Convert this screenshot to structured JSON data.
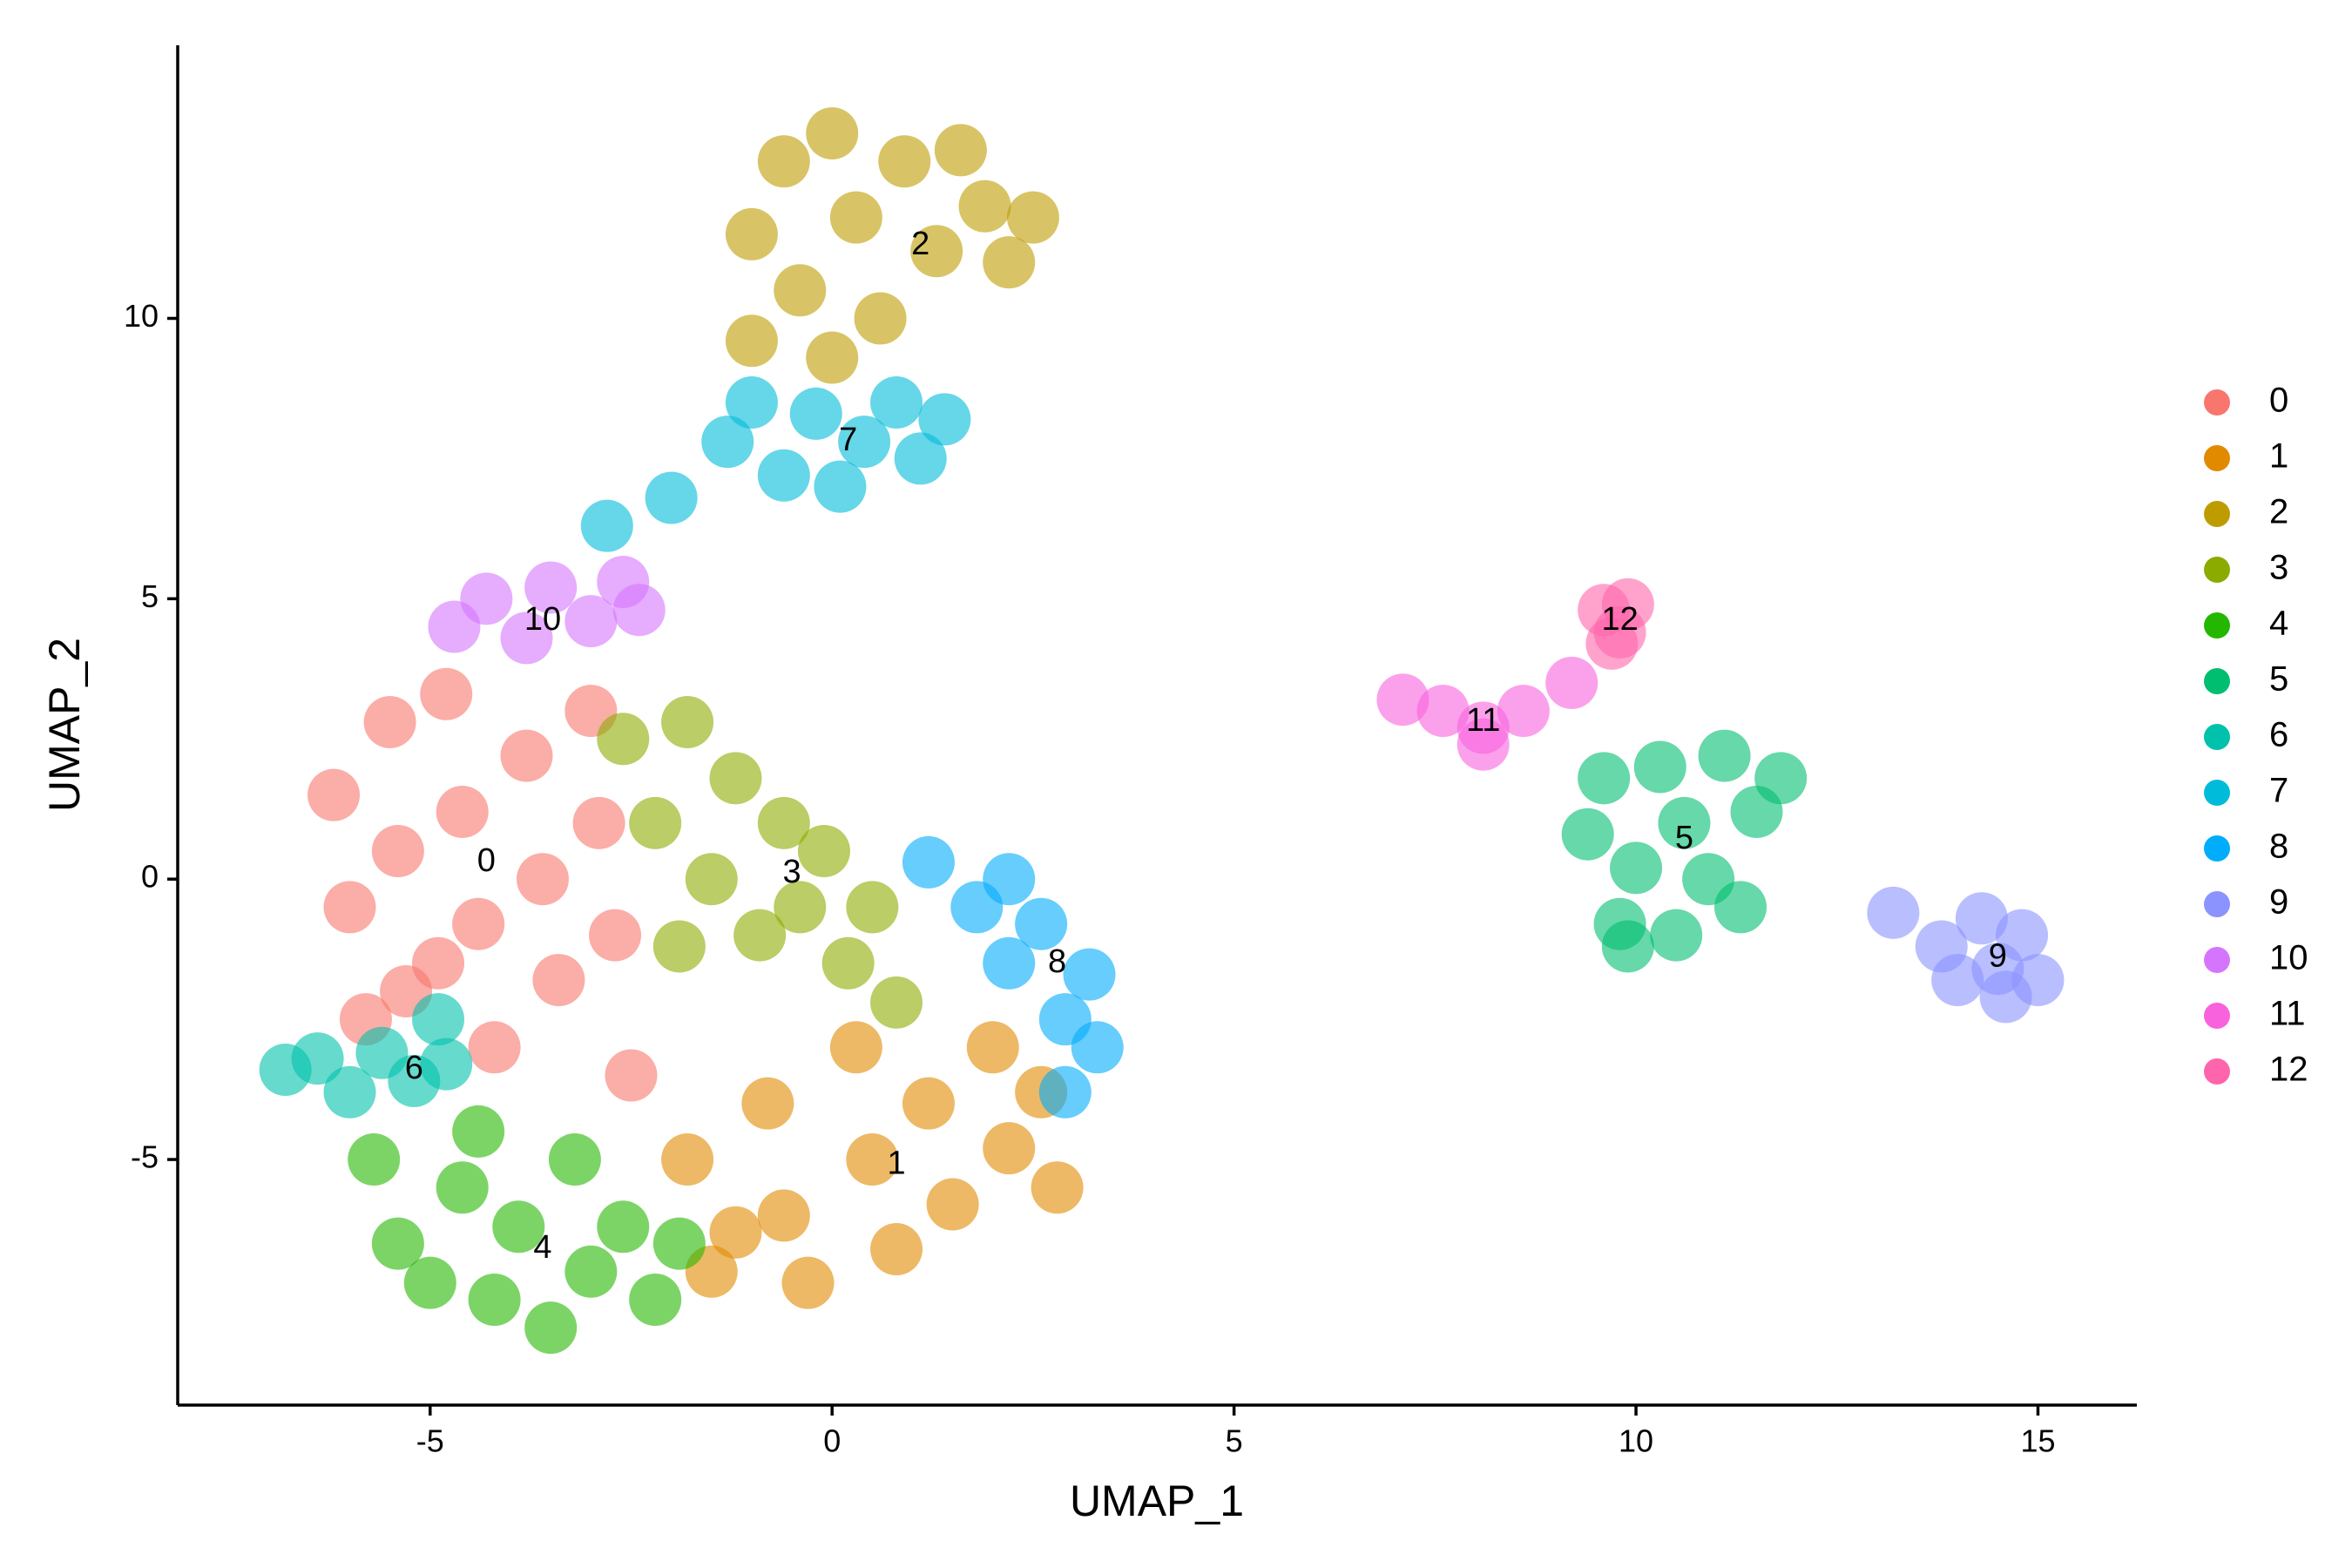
{
  "chart_data": {
    "type": "scatter",
    "x_label": "UMAP_1",
    "y_label": "UMAP_2",
    "xlim": [
      -8.14,
      16.23
    ],
    "ylim": [
      -9.38,
      14.87
    ],
    "xticks": [
      -5,
      0,
      5,
      10,
      15
    ],
    "yticks": [
      -5,
      0,
      5,
      10
    ],
    "legend": "right",
    "series": [
      {
        "name": "0",
        "color": "#F8766D",
        "label_x": -4.3,
        "label_y": 0.3,
        "x": [
          -6.2,
          -6.0,
          -5.5,
          -5.4,
          -5.3,
          -4.8,
          -4.6,
          -4.4,
          -4.2,
          -3.8,
          -3.6,
          -3.4,
          -3.0,
          -2.9,
          -2.7,
          -2.5,
          -5.8,
          -4.9
        ],
        "y": [
          1.5,
          -0.5,
          2.8,
          0.5,
          -2,
          3.3,
          1.2,
          -0.8,
          -3,
          2.2,
          0,
          -1.8,
          3,
          1,
          -1,
          -3.5,
          -2.5,
          -1.5
        ]
      },
      {
        "name": "1",
        "color": "#E18A00",
        "label_x": 0.8,
        "label_y": -5.1,
        "x": [
          -1.8,
          -1.5,
          -0.8,
          -0.6,
          -0.3,
          0.3,
          0.5,
          0.8,
          1.2,
          1.5,
          2,
          2.2,
          2.6,
          2.8,
          -1.2
        ],
        "y": [
          -5,
          -7,
          -4,
          -6,
          -7.2,
          -3,
          -5,
          -6.6,
          -4,
          -5.8,
          -3,
          -4.8,
          -3.8,
          -5.5,
          -6.3
        ]
      },
      {
        "name": "2",
        "color": "#BE9C00",
        "label_x": 1.1,
        "label_y": 11.3,
        "x": [
          -1.0,
          -0.6,
          -0.4,
          0,
          0.3,
          0.6,
          0.9,
          1.3,
          1.6,
          1.9,
          2.2,
          2.5,
          -1,
          0
        ],
        "y": [
          11.5,
          12.8,
          10.5,
          13.3,
          11.8,
          10,
          12.8,
          11.2,
          13,
          12,
          11,
          11.8,
          9.6,
          9.3
        ]
      },
      {
        "name": "3",
        "color": "#8CAB00",
        "label_x": -0.5,
        "label_y": 0.1,
        "x": [
          -2.6,
          -2.2,
          -1.8,
          -1.5,
          -1.2,
          -0.9,
          -0.6,
          -0.4,
          -0.1,
          0.2,
          0.5,
          0.8,
          -1.9
        ],
        "y": [
          2.5,
          1,
          2.8,
          0,
          1.8,
          -1,
          1,
          -0.5,
          0.5,
          -1.5,
          -0.5,
          -2.2,
          -1.2
        ]
      },
      {
        "name": "4",
        "color": "#24B700",
        "label_x": -3.6,
        "label_y": -6.6,
        "x": [
          -5.7,
          -5.4,
          -5,
          -4.6,
          -4.2,
          -3.9,
          -3.5,
          -3.2,
          -3,
          -2.6,
          -2.2,
          -1.9,
          -4.4
        ],
        "y": [
          -5,
          -6.5,
          -7.2,
          -5.5,
          -7.5,
          -6.2,
          -8,
          -5,
          -7,
          -6.2,
          -7.5,
          -6.5,
          -4.5
        ]
      },
      {
        "name": "5",
        "color": "#00BE70",
        "label_x": 10.6,
        "label_y": 0.7,
        "x": [
          9.4,
          9.6,
          9.8,
          10,
          10.3,
          10.5,
          10.6,
          10.9,
          11.1,
          11.3,
          11.5,
          11.8,
          9.9
        ],
        "y": [
          0.8,
          1.8,
          -0.8,
          0.2,
          2,
          -1,
          1,
          0,
          2.2,
          -0.5,
          1.2,
          1.8,
          -1.2
        ]
      },
      {
        "name": "6",
        "color": "#00C1AB",
        "label_x": -5.2,
        "label_y": -3.4,
        "x": [
          -6.8,
          -6.4,
          -6,
          -5.6,
          -5.2,
          -4.8,
          -4.9
        ],
        "y": [
          -3.4,
          -3.2,
          -3.8,
          -3.1,
          -3.6,
          -3.3,
          -2.5
        ]
      },
      {
        "name": "7",
        "color": "#00BBDA",
        "label_x": 0.2,
        "label_y": 7.8,
        "x": [
          -1.3,
          -1,
          -0.6,
          -0.2,
          0.1,
          0.4,
          0.8,
          1.1,
          1.4,
          -2,
          -2.8
        ],
        "y": [
          7.8,
          8.5,
          7.2,
          8.3,
          7,
          7.8,
          8.5,
          7.5,
          8.2,
          6.8,
          6.3
        ]
      },
      {
        "name": "8",
        "color": "#00ACFC",
        "label_x": 2.8,
        "label_y": -1.5,
        "x": [
          1.2,
          1.8,
          2.2,
          2.6,
          2.9,
          3.2,
          3.3,
          2.9,
          2.2
        ],
        "y": [
          0.3,
          -0.5,
          -1.5,
          -0.8,
          -2.5,
          -1.7,
          -3,
          -3.8,
          0
        ]
      },
      {
        "name": "9",
        "color": "#8B93FF",
        "label_x": 14.5,
        "label_y": -1.4,
        "x": [
          13.8,
          14,
          14.3,
          14.5,
          14.8,
          15,
          14.6,
          13.2
        ],
        "y": [
          -1.2,
          -1.8,
          -0.7,
          -1.6,
          -1,
          -1.8,
          -2.1,
          -0.6
        ]
      },
      {
        "name": "10",
        "color": "#D575FE",
        "label_x": -3.6,
        "label_y": 4.6,
        "x": [
          -4.7,
          -4.3,
          -3.8,
          -3.5,
          -3,
          -2.6,
          -2.4
        ],
        "y": [
          4.5,
          5,
          4.3,
          5.2,
          4.6,
          5.3,
          4.8
        ]
      },
      {
        "name": "11",
        "color": "#F962DD",
        "label_x": 8.1,
        "label_y": 2.8,
        "x": [
          7.1,
          7.6,
          8.1,
          8.1,
          8.6,
          9.2
        ],
        "y": [
          3.2,
          3.0,
          2.7,
          2.4,
          3,
          3.5
        ]
      },
      {
        "name": "12",
        "color": "#FF65AC",
        "label_x": 9.8,
        "label_y": 4.6,
        "x": [
          9.6,
          9.8,
          9.9,
          9.7
        ],
        "y": [
          4.8,
          4.4,
          4.9,
          4.2
        ]
      }
    ]
  }
}
